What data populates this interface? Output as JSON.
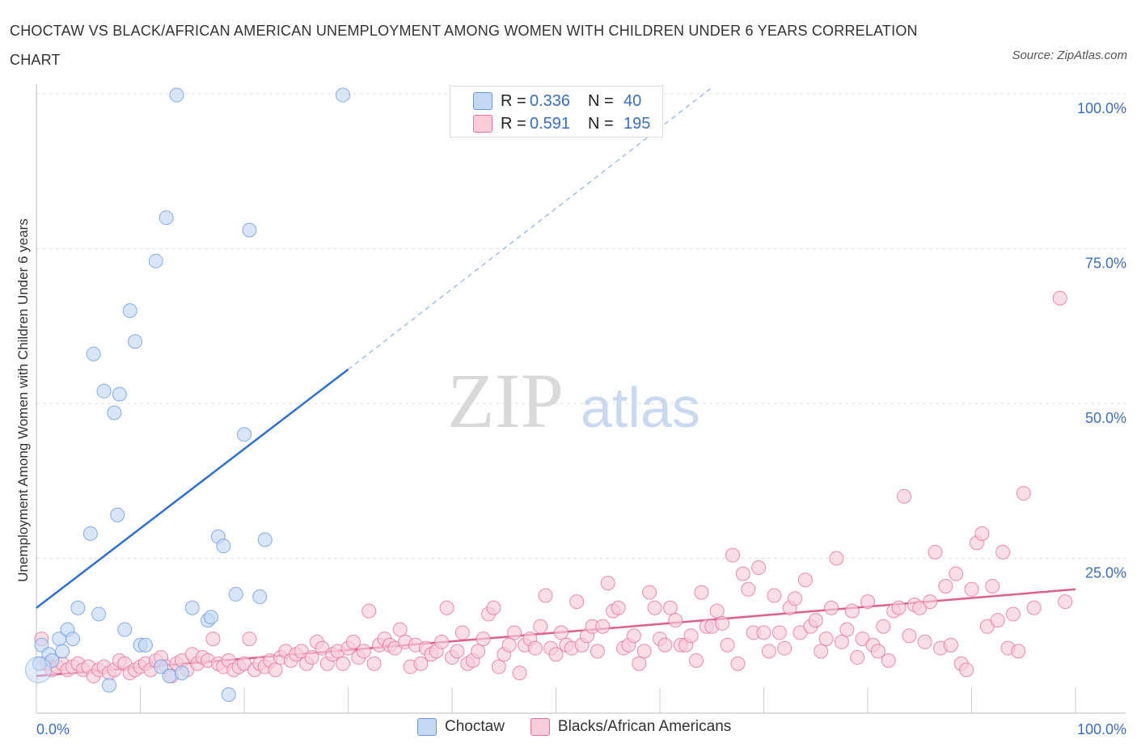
{
  "title": "CHOCTAW VS BLACK/AFRICAN AMERICAN UNEMPLOYMENT AMONG WOMEN WITH CHILDREN UNDER 6 YEARS CORRELATION CHART",
  "source": "Source: ZipAtlas.com",
  "watermark": {
    "zip": "ZIP",
    "atlas": "atlas"
  },
  "legend": {
    "rows": [
      {
        "r_label": "R =",
        "r_value": "0.336",
        "n_label": "N =",
        "n_value": "40",
        "color": "#a9c5ee"
      },
      {
        "r_label": "R =",
        "r_value": "0.591",
        "n_label": "N =",
        "n_value": "195",
        "color": "#f5b3c7"
      }
    ]
  },
  "bottom_legend": {
    "choctaw": "Choctaw",
    "black": "Blacks/African Americans"
  },
  "chart_data": {
    "type": "scatter",
    "title": "CHOCTAW VS BLACK/AFRICAN AMERICAN UNEMPLOYMENT AMONG WOMEN WITH CHILDREN UNDER 6 YEARS CORRELATION CHART",
    "xlabel": "",
    "ylabel": "Unemployment Among Women with Children Under 6 years",
    "xlim": [
      0,
      100
    ],
    "ylim": [
      0,
      100
    ],
    "x_tick_labels": [
      "0.0%",
      "100.0%"
    ],
    "y_tick_labels": [
      "25.0%",
      "50.0%",
      "75.0%",
      "100.0%"
    ],
    "y_ticks": [
      25,
      50,
      75,
      100
    ],
    "grid": true,
    "colors": {
      "choctaw": "#6a9be0",
      "choctaw_fill": "#c5d9f5",
      "black": "#e8729a",
      "black_fill": "#f8cdd9",
      "axis_text": "#3a6fc4"
    },
    "series": [
      {
        "name": "Choctaw",
        "r": 0.336,
        "n": 40,
        "trend": {
          "x": [
            0,
            30
          ],
          "y": [
            17,
            55.5
          ],
          "dashed_to": [
            65,
            101
          ]
        },
        "points": [
          [
            0.3,
            8
          ],
          [
            0.5,
            11
          ],
          [
            1.2,
            9.5
          ],
          [
            1.5,
            8.5
          ],
          [
            2.2,
            12
          ],
          [
            2.5,
            10
          ],
          [
            3,
            13.5
          ],
          [
            3.5,
            12
          ],
          [
            4,
            17
          ],
          [
            5.2,
            29
          ],
          [
            5.5,
            58
          ],
          [
            6,
            16
          ],
          [
            6.5,
            52
          ],
          [
            7,
            4.5
          ],
          [
            7.5,
            48.5
          ],
          [
            7.8,
            32
          ],
          [
            8,
            51.5
          ],
          [
            8.5,
            13.5
          ],
          [
            9,
            65
          ],
          [
            9.5,
            60
          ],
          [
            10,
            11
          ],
          [
            10.5,
            11
          ],
          [
            11.5,
            73
          ],
          [
            12,
            7.5
          ],
          [
            12.5,
            80
          ],
          [
            12.8,
            6
          ],
          [
            13.5,
            99.8
          ],
          [
            14,
            6.5
          ],
          [
            15,
            17
          ],
          [
            16.5,
            15
          ],
          [
            16.8,
            15.5
          ],
          [
            17.5,
            28.5
          ],
          [
            18,
            27
          ],
          [
            18.5,
            3
          ],
          [
            19.2,
            19.2
          ],
          [
            20,
            45
          ],
          [
            20.5,
            78
          ],
          [
            21.5,
            18.8
          ],
          [
            22,
            28
          ],
          [
            29.5,
            99.8
          ]
        ]
      },
      {
        "name": "Blacks/African Americans",
        "r": 0.591,
        "n": 195,
        "trend": {
          "x": [
            0,
            100
          ],
          "y": [
            6,
            20
          ]
        },
        "points": [
          [
            0.5,
            12
          ],
          [
            1,
            8
          ],
          [
            1.5,
            7
          ],
          [
            2,
            7.5
          ],
          [
            2.5,
            8
          ],
          [
            3,
            7
          ],
          [
            3.5,
            7.5
          ],
          [
            4,
            8
          ],
          [
            4.5,
            7
          ],
          [
            5,
            7.5
          ],
          [
            5.5,
            6
          ],
          [
            6,
            7
          ],
          [
            6.5,
            7.5
          ],
          [
            7,
            6.5
          ],
          [
            7.5,
            7
          ],
          [
            8,
            8.5
          ],
          [
            8.5,
            8
          ],
          [
            9,
            6.5
          ],
          [
            9.5,
            7
          ],
          [
            10,
            7.5
          ],
          [
            10.5,
            8
          ],
          [
            11,
            7
          ],
          [
            11.5,
            8.5
          ],
          [
            12,
            9
          ],
          [
            12.5,
            7.5
          ],
          [
            13,
            6
          ],
          [
            13.5,
            8
          ],
          [
            14,
            8.5
          ],
          [
            14.5,
            7
          ],
          [
            15,
            9.5
          ],
          [
            15.5,
            8
          ],
          [
            16,
            9
          ],
          [
            16.5,
            8.5
          ],
          [
            17,
            12
          ],
          [
            17.5,
            8
          ],
          [
            18,
            7.5
          ],
          [
            18.5,
            8.5
          ],
          [
            19,
            7
          ],
          [
            19.5,
            7.5
          ],
          [
            20,
            8
          ],
          [
            20.5,
            12
          ],
          [
            21,
            7
          ],
          [
            21.5,
            8
          ],
          [
            22,
            7.5
          ],
          [
            22.5,
            8.5
          ],
          [
            23,
            7
          ],
          [
            23.5,
            9
          ],
          [
            24,
            10
          ],
          [
            24.5,
            8.5
          ],
          [
            25,
            9.5
          ],
          [
            25.5,
            10
          ],
          [
            26,
            8
          ],
          [
            26.5,
            9
          ],
          [
            27,
            11.5
          ],
          [
            27.5,
            10.5
          ],
          [
            28,
            8
          ],
          [
            28.5,
            9.5
          ],
          [
            29,
            10
          ],
          [
            29.5,
            8
          ],
          [
            30,
            10.5
          ],
          [
            30.5,
            11.5
          ],
          [
            31,
            9
          ],
          [
            31.5,
            10
          ],
          [
            32,
            16.5
          ],
          [
            32.5,
            8
          ],
          [
            33,
            11
          ],
          [
            33.5,
            12
          ],
          [
            34,
            11
          ],
          [
            34.5,
            10.5
          ],
          [
            35,
            13.5
          ],
          [
            35.5,
            11.5
          ],
          [
            36,
            7.5
          ],
          [
            36.5,
            11
          ],
          [
            37,
            8
          ],
          [
            37.5,
            10.5
          ],
          [
            38,
            9.5
          ],
          [
            38.5,
            10
          ],
          [
            39,
            11.5
          ],
          [
            39.5,
            17
          ],
          [
            40,
            9
          ],
          [
            40.5,
            10
          ],
          [
            41,
            13
          ],
          [
            41.5,
            8
          ],
          [
            42,
            8.5
          ],
          [
            42.5,
            10
          ],
          [
            43,
            12
          ],
          [
            43.5,
            16
          ],
          [
            44,
            17
          ],
          [
            44.5,
            7.5
          ],
          [
            45,
            9.5
          ],
          [
            45.5,
            11
          ],
          [
            46,
            13
          ],
          [
            46.5,
            6.5
          ],
          [
            47,
            11
          ],
          [
            47.5,
            12
          ],
          [
            48,
            10.5
          ],
          [
            48.5,
            14
          ],
          [
            49,
            19
          ],
          [
            49.5,
            10.5
          ],
          [
            50,
            9.5
          ],
          [
            50.5,
            13
          ],
          [
            51,
            11
          ],
          [
            51.5,
            10.5
          ],
          [
            52,
            18
          ],
          [
            52.5,
            11
          ],
          [
            53,
            12.5
          ],
          [
            53.5,
            14
          ],
          [
            54,
            10
          ],
          [
            54.5,
            14
          ],
          [
            55,
            21
          ],
          [
            55.5,
            16.5
          ],
          [
            56,
            17
          ],
          [
            56.5,
            10.5
          ],
          [
            57,
            11
          ],
          [
            57.5,
            12.5
          ],
          [
            58,
            8
          ],
          [
            58.5,
            10
          ],
          [
            59,
            19.5
          ],
          [
            59.5,
            17
          ],
          [
            60,
            12
          ],
          [
            60.5,
            11
          ],
          [
            61,
            17
          ],
          [
            61.5,
            15
          ],
          [
            62,
            11
          ],
          [
            62.5,
            11
          ],
          [
            63,
            12.5
          ],
          [
            63.5,
            8.5
          ],
          [
            64,
            19.5
          ],
          [
            64.5,
            14
          ],
          [
            65,
            14
          ],
          [
            65.5,
            16.5
          ],
          [
            66,
            14.5
          ],
          [
            66.5,
            11
          ],
          [
            67,
            25.5
          ],
          [
            67.5,
            8
          ],
          [
            68,
            22.5
          ],
          [
            68.5,
            20
          ],
          [
            69,
            13
          ],
          [
            69.5,
            23.5
          ],
          [
            70,
            13
          ],
          [
            70.5,
            10
          ],
          [
            71,
            19
          ],
          [
            71.5,
            13
          ],
          [
            72,
            10.5
          ],
          [
            72.5,
            17
          ],
          [
            73,
            18.5
          ],
          [
            73.5,
            13
          ],
          [
            74,
            21.5
          ],
          [
            74.5,
            14
          ],
          [
            75,
            15
          ],
          [
            75.5,
            10
          ],
          [
            76,
            12
          ],
          [
            76.5,
            17
          ],
          [
            77,
            25
          ],
          [
            77.5,
            11.5
          ],
          [
            78,
            13.5
          ],
          [
            78.5,
            16.5
          ],
          [
            79,
            9
          ],
          [
            79.5,
            12
          ],
          [
            80,
            18
          ],
          [
            80.5,
            11
          ],
          [
            81,
            10
          ],
          [
            81.5,
            14
          ],
          [
            82,
            8.5
          ],
          [
            82.5,
            16.5
          ],
          [
            83,
            17
          ],
          [
            83.5,
            35
          ],
          [
            84,
            12.5
          ],
          [
            84.5,
            17.5
          ],
          [
            85,
            17
          ],
          [
            85.5,
            11.5
          ],
          [
            86,
            18
          ],
          [
            86.5,
            26
          ],
          [
            87,
            10.5
          ],
          [
            87.5,
            20.5
          ],
          [
            88,
            11
          ],
          [
            88.5,
            22.5
          ],
          [
            89,
            8
          ],
          [
            89.5,
            7
          ],
          [
            90,
            20
          ],
          [
            90.5,
            27.5
          ],
          [
            91,
            29
          ],
          [
            91.5,
            14
          ],
          [
            92,
            20.5
          ],
          [
            92.5,
            15
          ],
          [
            93,
            26
          ],
          [
            93.5,
            10.5
          ],
          [
            94,
            16
          ],
          [
            94.5,
            10
          ],
          [
            95,
            35.5
          ],
          [
            96,
            17
          ],
          [
            98.5,
            67
          ],
          [
            99,
            18
          ]
        ]
      }
    ]
  }
}
